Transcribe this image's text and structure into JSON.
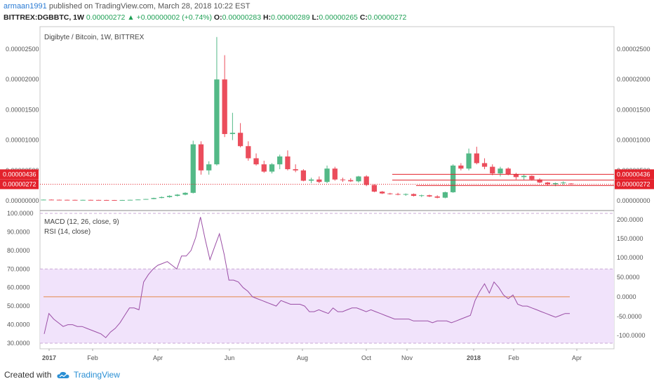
{
  "header": {
    "user": "armaan1991",
    "published_text": "published on TradingView.com, March 28, 2018 10:22 EST",
    "symbol": "BITTREX:DGBBTC, 1W",
    "price": "0.00000272",
    "change": "+0.00000002 (+0.74%)",
    "open_label": "O:",
    "open": "0.00000283",
    "high_label": "H:",
    "high": "0.00000289",
    "low_label": "L:",
    "low": "0.00000265",
    "close_label": "C:",
    "close": "0.00000272"
  },
  "footer": {
    "created_with": "Created with",
    "brand": "TradingView"
  },
  "colors": {
    "up": "#53b987",
    "down": "#eb4d5c",
    "rsi": "#9b4fa6",
    "rsi_band": "#f1e3fb",
    "macd_zero": "#e2884a",
    "badge": "#e3222c"
  },
  "chart_data": [
    {
      "type": "candlestick",
      "title": "Digibyte / Bitcoin, 1W, BITTREX",
      "x_ticks": [
        "2017",
        "Feb",
        "Apr",
        "Jun",
        "Aug",
        "Oct",
        "Nov",
        "2018",
        "Feb",
        "Apr"
      ],
      "y_ticks": [
        "0.00000000",
        "0.00000500",
        "0.00001000",
        "0.00001500",
        "0.00002000",
        "0.00002500"
      ],
      "ylim": [
        0,
        2.8e-05
      ],
      "price_badges": [
        "0.00000436",
        "0.00000272"
      ],
      "levels": [
        4.36e-06,
        3.4e-06,
        2.5e-06
      ],
      "candles": [
        {
          "o": 1.5e-07,
          "h": 2e-07,
          "l": 1.2e-07,
          "c": 1.8e-07
        },
        {
          "o": 1.8e-07,
          "h": 2.2e-07,
          "l": 1.4e-07,
          "c": 1.6e-07
        },
        {
          "o": 1.6e-07,
          "h": 1.9e-07,
          "l": 1.3e-07,
          "c": 1.5e-07
        },
        {
          "o": 1.5e-07,
          "h": 1.8e-07,
          "l": 1.2e-07,
          "c": 1.4e-07
        },
        {
          "o": 1.4e-07,
          "h": 1.7e-07,
          "l": 1.1e-07,
          "c": 1.3e-07
        },
        {
          "o": 1.3e-07,
          "h": 1.6e-07,
          "l": 1.1e-07,
          "c": 1.4e-07
        },
        {
          "o": 1.4e-07,
          "h": 1.7e-07,
          "l": 1.2e-07,
          "c": 1.3e-07
        },
        {
          "o": 1.3e-07,
          "h": 1.5e-07,
          "l": 1.1e-07,
          "c": 1.2e-07
        },
        {
          "o": 1.2e-07,
          "h": 1.4e-07,
          "l": 1e-07,
          "c": 1.1e-07
        },
        {
          "o": 1.1e-07,
          "h": 1.3e-07,
          "l": 9e-08,
          "c": 1e-07
        },
        {
          "o": 1e-07,
          "h": 1.3e-07,
          "l": 9e-08,
          "c": 1.2e-07
        },
        {
          "o": 1.2e-07,
          "h": 1.6e-07,
          "l": 1e-07,
          "c": 1.5e-07
        },
        {
          "o": 1.5e-07,
          "h": 2.2e-07,
          "l": 1.3e-07,
          "c": 2e-07
        },
        {
          "o": 2e-07,
          "h": 3e-07,
          "l": 1.8e-07,
          "c": 2.8e-07
        },
        {
          "o": 2.8e-07,
          "h": 5e-07,
          "l": 2.5e-07,
          "c": 4.5e-07
        },
        {
          "o": 4.5e-07,
          "h": 7e-07,
          "l": 4e-07,
          "c": 6e-07
        },
        {
          "o": 6e-07,
          "h": 9e-07,
          "l": 5e-07,
          "c": 8e-07
        },
        {
          "o": 8e-07,
          "h": 1.1e-06,
          "l": 7e-07,
          "c": 1e-06
        },
        {
          "o": 1e-06,
          "h": 1.4e-06,
          "l": 9e-07,
          "c": 1.3e-06
        },
        {
          "o": 1.3e-06,
          "h": 9.9e-06,
          "l": 1.2e-06,
          "c": 9.3e-06
        },
        {
          "o": 9.3e-06,
          "h": 9.8e-06,
          "l": 4.3e-06,
          "c": 5e-06
        },
        {
          "o": 5e-06,
          "h": 6.5e-06,
          "l": 4.3e-06,
          "c": 6e-06
        },
        {
          "o": 6e-06,
          "h": 2.7e-05,
          "l": 5.8e-06,
          "c": 2e-05
        },
        {
          "o": 2e-05,
          "h": 2.4e-05,
          "l": 1.05e-05,
          "c": 1.1e-05
        },
        {
          "o": 1.1e-05,
          "h": 1.45e-05,
          "l": 1e-05,
          "c": 1.12e-05
        },
        {
          "o": 1.12e-05,
          "h": 1.28e-05,
          "l": 8.8e-06,
          "c": 9e-06
        },
        {
          "o": 9e-06,
          "h": 9.8e-06,
          "l": 6.6e-06,
          "c": 7e-06
        },
        {
          "o": 7e-06,
          "h": 7.8e-06,
          "l": 5.8e-06,
          "c": 6e-06
        },
        {
          "o": 6e-06,
          "h": 6.6e-06,
          "l": 4.6e-06,
          "c": 4.8e-06
        },
        {
          "o": 4.8e-06,
          "h": 6.2e-06,
          "l": 4.5e-06,
          "c": 6e-06
        },
        {
          "o": 6e-06,
          "h": 7.6e-06,
          "l": 5.2e-06,
          "c": 7.3e-06
        },
        {
          "o": 7.3e-06,
          "h": 8.3e-06,
          "l": 5e-06,
          "c": 5.2e-06
        },
        {
          "o": 5.2e-06,
          "h": 6e-06,
          "l": 4.7e-06,
          "c": 5e-06
        },
        {
          "o": 5e-06,
          "h": 5.2e-06,
          "l": 3.2e-06,
          "c": 3.3e-06
        },
        {
          "o": 3.3e-06,
          "h": 3.8e-06,
          "l": 2.9e-06,
          "c": 3.5e-06
        },
        {
          "o": 3.5e-06,
          "h": 4e-06,
          "l": 2.9e-06,
          "c": 3.1e-06
        },
        {
          "o": 3.1e-06,
          "h": 5.8e-06,
          "l": 2.9e-06,
          "c": 5.3e-06
        },
        {
          "o": 5.3e-06,
          "h": 5.6e-06,
          "l": 3.3e-06,
          "c": 3.5e-06
        },
        {
          "o": 3.5e-06,
          "h": 3.8e-06,
          "l": 3.1e-06,
          "c": 3.4e-06
        },
        {
          "o": 3.4e-06,
          "h": 3.7e-06,
          "l": 3.1e-06,
          "c": 3.2e-06
        },
        {
          "o": 3.2e-06,
          "h": 4.1e-06,
          "l": 3e-06,
          "c": 4e-06
        },
        {
          "o": 4e-06,
          "h": 4.2e-06,
          "l": 2.4e-06,
          "c": 2.6e-06
        },
        {
          "o": 2.6e-06,
          "h": 2.7e-06,
          "l": 1.4e-06,
          "c": 1.5e-06
        },
        {
          "o": 1.5e-06,
          "h": 1.6e-06,
          "l": 1.1e-06,
          "c": 1.2e-06
        },
        {
          "o": 1.2e-06,
          "h": 1.3e-06,
          "l": 1e-06,
          "c": 1.1e-06
        },
        {
          "o": 1.1e-06,
          "h": 1.3e-06,
          "l": 9e-07,
          "c": 1e-06
        },
        {
          "o": 1e-06,
          "h": 1.2e-06,
          "l": 8e-07,
          "c": 1.1e-06
        },
        {
          "o": 1.1e-06,
          "h": 1.2e-06,
          "l": 7e-07,
          "c": 8e-07
        },
        {
          "o": 8e-07,
          "h": 1e-06,
          "l": 6e-07,
          "c": 9e-07
        },
        {
          "o": 9e-07,
          "h": 1e-06,
          "l": 6e-07,
          "c": 7e-07
        },
        {
          "o": 7e-07,
          "h": 9e-07,
          "l": 4e-07,
          "c": 5e-07
        },
        {
          "o": 5e-07,
          "h": 1.5e-06,
          "l": 4e-07,
          "c": 1.4e-06
        },
        {
          "o": 1.4e-06,
          "h": 6e-06,
          "l": 1.3e-06,
          "c": 5.8e-06
        },
        {
          "o": 5.8e-06,
          "h": 6.2e-06,
          "l": 5e-06,
          "c": 5.3e-06
        },
        {
          "o": 5.3e-06,
          "h": 8.6e-06,
          "l": 5e-06,
          "c": 7.8e-06
        },
        {
          "o": 7.8e-06,
          "h": 8.9e-06,
          "l": 6e-06,
          "c": 6.2e-06
        },
        {
          "o": 6.2e-06,
          "h": 7e-06,
          "l": 5.2e-06,
          "c": 5.6e-06
        },
        {
          "o": 5.6e-06,
          "h": 6e-06,
          "l": 4.2e-06,
          "c": 4.5e-06
        },
        {
          "o": 4.5e-06,
          "h": 5.6e-06,
          "l": 4e-06,
          "c": 5.3e-06
        },
        {
          "o": 5.3e-06,
          "h": 5.5e-06,
          "l": 4.2e-06,
          "c": 4.4e-06
        },
        {
          "o": 4.4e-06,
          "h": 4.6e-06,
          "l": 3.5e-06,
          "c": 3.9e-06
        },
        {
          "o": 3.9e-06,
          "h": 4.4e-06,
          "l": 3.4e-06,
          "c": 4.1e-06
        },
        {
          "o": 4.1e-06,
          "h": 4.2e-06,
          "l": 3.3e-06,
          "c": 3.5e-06
        },
        {
          "o": 3.5e-06,
          "h": 3.7e-06,
          "l": 2.9e-06,
          "c": 3e-06
        },
        {
          "o": 3e-06,
          "h": 3.1e-06,
          "l": 2.5e-06,
          "c": 2.7e-06
        },
        {
          "o": 2.7e-06,
          "h": 3e-06,
          "l": 2.4e-06,
          "c": 2.9e-06
        },
        {
          "o": 2.9e-06,
          "h": 3.2e-06,
          "l": 2.6e-06,
          "c": 3e-06
        },
        {
          "o": 2.83e-06,
          "h": 2.89e-06,
          "l": 2.65e-06,
          "c": 2.72e-06
        }
      ]
    },
    {
      "type": "line",
      "legend": [
        "MACD (12, 26, close, 9)",
        "RSI (14, close)"
      ],
      "y_ticks_left": [
        "30.0000",
        "40.0000",
        "50.0000",
        "60.0000",
        "70.0000",
        "80.0000",
        "90.0000",
        "100.0000"
      ],
      "y_ticks_right": [
        "-100.0000",
        "-50.0000",
        "0.0000",
        "50.0000",
        "100.0000",
        "150.0000",
        "200.0000"
      ],
      "ylim": [
        28,
        101
      ],
      "rsi_band": [
        30,
        70
      ],
      "macd_zero_level": 55,
      "rsi": [
        35,
        46,
        43,
        41,
        39,
        40,
        40,
        39,
        39,
        38,
        37,
        36,
        35,
        33,
        36,
        38,
        41,
        45,
        49,
        49,
        48,
        63,
        67,
        70,
        72,
        73,
        74,
        72,
        70,
        77,
        77,
        80,
        87,
        98,
        86,
        75,
        82,
        89,
        78,
        64,
        64,
        63,
        60,
        58,
        55,
        54,
        53,
        52,
        51,
        50,
        53,
        52,
        51,
        51,
        51,
        50,
        47,
        47,
        48,
        47,
        46,
        49,
        47,
        47,
        48,
        49,
        49,
        48,
        47,
        48,
        47,
        46,
        45,
        44,
        43,
        43,
        43,
        43,
        42,
        42,
        42,
        42,
        41,
        42,
        42,
        42,
        41,
        42,
        43,
        44,
        45,
        53,
        58,
        62,
        57,
        63,
        60,
        56,
        54,
        56,
        51,
        50,
        50,
        49,
        48,
        47,
        46,
        45,
        44,
        45,
        46,
        46
      ],
      "x_ticks": [
        "2017",
        "Feb",
        "Apr",
        "Jun",
        "Aug",
        "Oct",
        "Nov",
        "2018",
        "Feb",
        "Apr"
      ]
    }
  ]
}
